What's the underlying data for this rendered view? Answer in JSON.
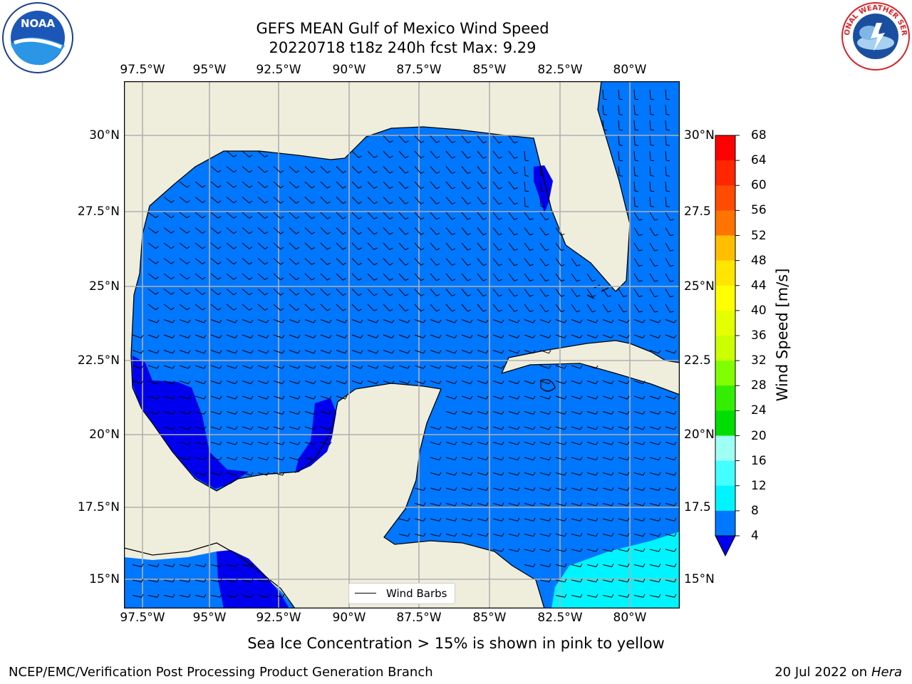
{
  "title_line1": "GEFS MEAN Gulf of Mexico Wind Speed",
  "title_line2": "20220718 t18z 240h fcst   Max: 9.29",
  "lon_labels": [
    "97.5°W",
    "95°W",
    "92.5°W",
    "90°W",
    "87.5°W",
    "85°W",
    "82.5°W",
    "80°W"
  ],
  "lat_labels": [
    "30°N",
    "27.5°N",
    "25°N",
    "22.5°N",
    "20°N",
    "17.5°N",
    "15°N"
  ],
  "lat_labels_right": [
    "30°N",
    "27.5",
    "25°N",
    "22.5",
    "20°N",
    "17.5",
    "15°N"
  ],
  "colorbar": {
    "label": "Wind Speed [m/s]",
    "ticks": [
      "68",
      "64",
      "60",
      "56",
      "52",
      "48",
      "44",
      "40",
      "36",
      "32",
      "28",
      "24",
      "20",
      "16",
      "12",
      "8",
      "4"
    ],
    "colors": [
      "#ff0000",
      "#ff2600",
      "#ff4c00",
      "#ff7300",
      "#ff9900",
      "#ffbf00",
      "#ffe500",
      "#ffff00",
      "#e6ff00",
      "#ccff00",
      "#80ff00",
      "#33ee00",
      "#00dd00",
      "#55ff88",
      "#a0fff5",
      "#44ffff",
      "#00f4ff",
      "#0077ff"
    ],
    "under_color": "#0000ee"
  },
  "legend_label": "Wind Barbs",
  "caption": "Sea Ice Concentration > 15% is shown in pink to yellow",
  "footer_left": "NCEP/EMC/Verification Post Processing Product Generation Branch",
  "footer_date": "20 Jul 2022 on",
  "footer_host": "Hera",
  "logos": {
    "left": "NOAA",
    "right": "NATIONAL WEATHER SERVICE"
  },
  "colors": {
    "land": "#efeedc",
    "ocean_main": "#0077ff",
    "ocean_dark": "#0000ee",
    "ocean_cyan": "#00f4ff",
    "grid": "#b0b0b0"
  }
}
